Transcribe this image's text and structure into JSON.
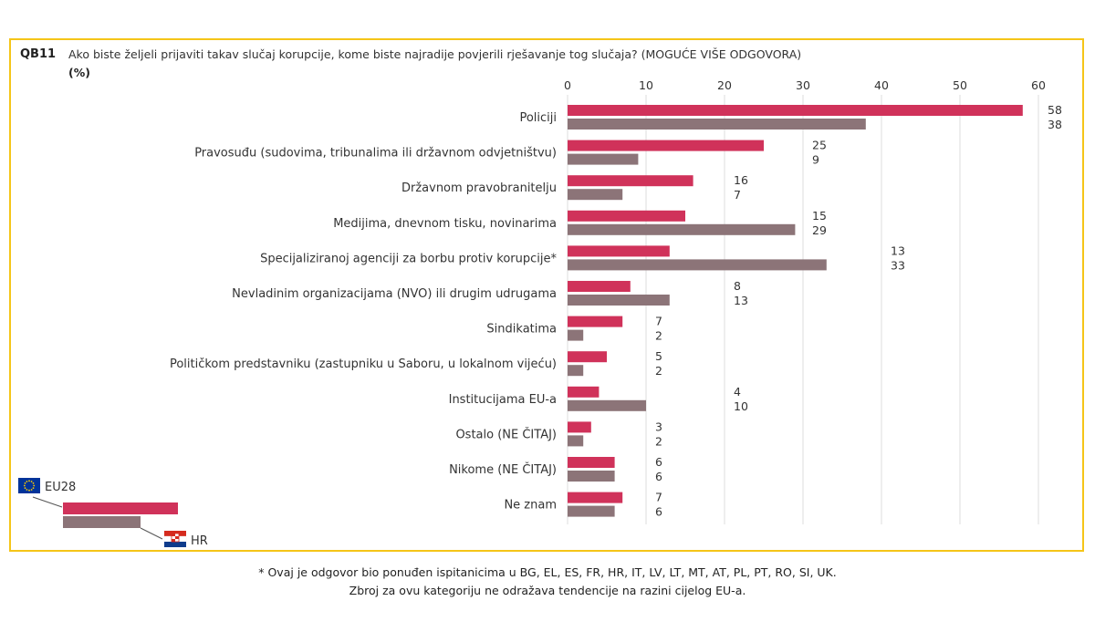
{
  "question": {
    "code": "QB11",
    "text": "Ako biste željeli prijaviti takav slučaj korupcije, kome biste najradije povjerili rješavanje tog slučaja? (MOGUĆE VIŠE ODGOVORA)",
    "unit": "(%)"
  },
  "footnote": {
    "line1": "* Ovaj je odgovor bio ponuđen ispitanicima u BG, EL, ES, FR, HR, IT, LV, LT, MT, AT, PL, PT, RO, SI, UK.",
    "line2": "Zbroj za ovu kategoriju ne odražava tendencije na razini cijelog EU-a."
  },
  "colors": {
    "eu28": "#d0325a",
    "hr": "#8c7478",
    "frame": "#f5c518"
  },
  "chart_data": {
    "type": "bar",
    "orientation": "horizontal",
    "xlim": [
      0,
      60
    ],
    "xticks": [
      0,
      10,
      20,
      30,
      40,
      50,
      60
    ],
    "categories": [
      "Policiji",
      "Pravosuđu (sudovima, tribunalima ili državnom odvjetništvu)",
      "Državnom pravobranitelju",
      "Medijima, dnevnom tisku, novinarima",
      "Specijaliziranoj agenciji za borbu protiv korupcije*",
      "Nevladinim organizacijama (NVO) ili drugim udrugama",
      "Sindikatima",
      "Političkom predstavniku (zastupniku u Saboru, u lokalnom vijeću)",
      "Institucijama EU-a",
      "Ostalo (NE ČITAJ)",
      "Nikome (NE ČITAJ)",
      "Ne znam"
    ],
    "series": [
      {
        "name": "EU28",
        "values": [
          58,
          25,
          16,
          15,
          13,
          8,
          7,
          5,
          4,
          3,
          6,
          7
        ]
      },
      {
        "name": "HR",
        "values": [
          38,
          9,
          7,
          29,
          33,
          13,
          2,
          2,
          10,
          2,
          6,
          6
        ]
      }
    ]
  }
}
